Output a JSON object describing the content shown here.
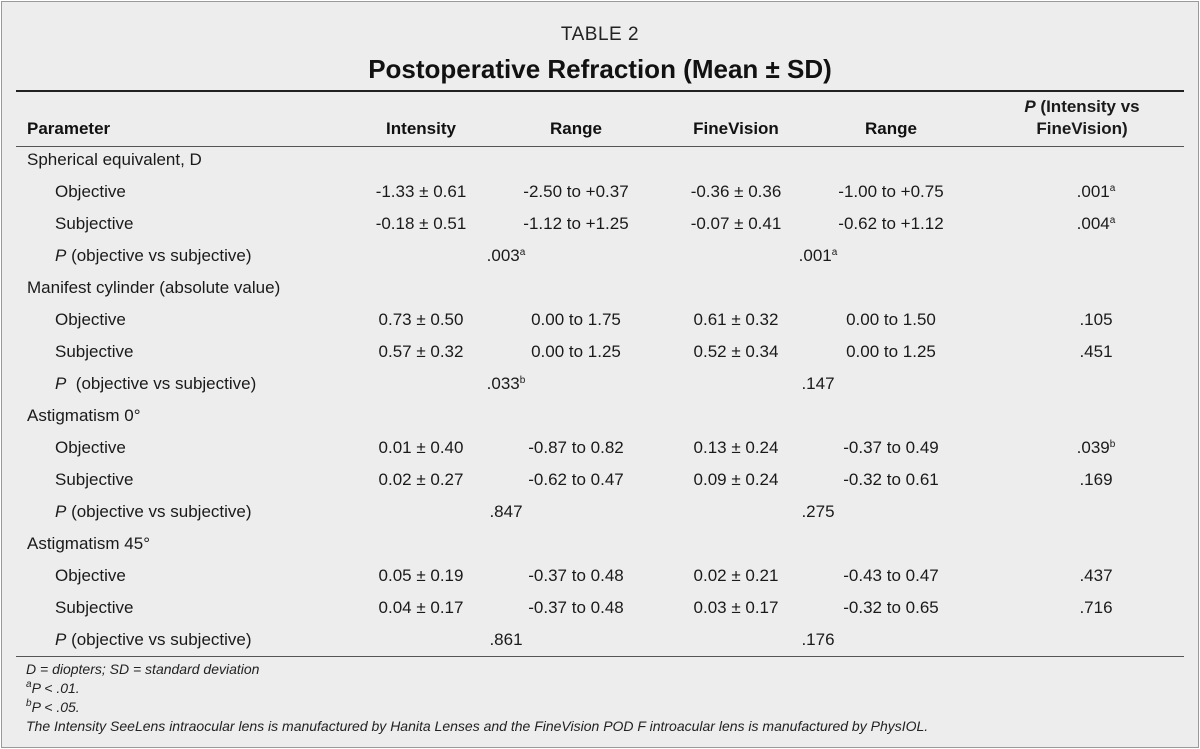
{
  "table": {
    "label": "TABLE 2",
    "title": "Postoperative Refraction (Mean ± SD)",
    "headers": {
      "parameter": "Parameter",
      "intensity": "Intensity",
      "range1": "Range",
      "finevision": "FineVision",
      "range2": "Range",
      "p_letter": "P",
      "p_line1": " (Intensity vs",
      "p_line2": "FineVision)"
    },
    "groups": [
      {
        "name": "Spherical equivalent, D",
        "objective": {
          "label": "Objective",
          "intensity": "-1.33 ± 0.61",
          "range1": "-2.50 to +0.37",
          "finevision": "-0.36 ± 0.36",
          "range2": "-1.00 to +0.75",
          "p": ".001",
          "p_sup": "a"
        },
        "subjective": {
          "label": "Subjective",
          "intensity": "-0.18 ± 0.51",
          "range1": "-1.12 to +1.25",
          "finevision": "-0.07 ± 0.41",
          "range2": "-0.62 to +1.12",
          "p": ".004",
          "p_sup": "a"
        },
        "pcompare": {
          "p_letter": "P",
          "label": " (objective vs subjective)",
          "intensity": ".003",
          "intensity_sup": "a",
          "finevision": ".001",
          "finevision_sup": "a"
        }
      },
      {
        "name": "Manifest cylinder (absolute value)",
        "objective": {
          "label": "Objective",
          "intensity": "0.73 ± 0.50",
          "range1": "0.00 to 1.75",
          "finevision": "0.61 ± 0.32",
          "range2": "0.00 to 1.50",
          "p": ".105",
          "p_sup": ""
        },
        "subjective": {
          "label": "Subjective",
          "intensity": "0.57 ± 0.32",
          "range1": "0.00 to 1.25",
          "finevision": "0.52 ± 0.34",
          "range2": "0.00 to 1.25",
          "p": ".451",
          "p_sup": ""
        },
        "pcompare": {
          "p_letter": "P",
          "label": "  (objective vs subjective)",
          "intensity": ".033",
          "intensity_sup": "b",
          "finevision": ".147",
          "finevision_sup": ""
        }
      },
      {
        "name": "Astigmatism 0°",
        "objective": {
          "label": "Objective",
          "intensity": "0.01 ± 0.40",
          "range1": "-0.87 to 0.82",
          "finevision": "0.13 ± 0.24",
          "range2": "-0.37 to 0.49",
          "p": ".039",
          "p_sup": "b"
        },
        "subjective": {
          "label": "Subjective",
          "intensity": "0.02 ± 0.27",
          "range1": "-0.62 to 0.47",
          "finevision": "0.09 ± 0.24",
          "range2": "-0.32 to 0.61",
          "p": ".169",
          "p_sup": ""
        },
        "pcompare": {
          "p_letter": "P",
          "label": " (objective vs subjective)",
          "intensity": ".847",
          "intensity_sup": "",
          "finevision": ".275",
          "finevision_sup": ""
        }
      },
      {
        "name": "Astigmatism 45°",
        "objective": {
          "label": "Objective",
          "intensity": "0.05 ± 0.19",
          "range1": "-0.37 to 0.48",
          "finevision": "0.02 ± 0.21",
          "range2": "-0.43 to 0.47",
          "p": ".437",
          "p_sup": ""
        },
        "subjective": {
          "label": "Subjective",
          "intensity": "0.04 ± 0.17",
          "range1": "-0.37 to 0.48",
          "finevision": "0.03 ± 0.17",
          "range2": "-0.32 to 0.65",
          "p": ".716",
          "p_sup": ""
        },
        "pcompare": {
          "p_letter": "P",
          "label": " (objective vs subjective)",
          "intensity": ".861",
          "intensity_sup": "",
          "finevision": ".176",
          "finevision_sup": ""
        }
      }
    ],
    "footnotes": {
      "abbrev": "D = diopters; SD = standard deviation",
      "a_mark": "a",
      "a_text": "P < .01.",
      "b_mark": "b",
      "b_text": "P < .05.",
      "lens": "The Intensity SeeLens intraocular lens is manufactured by Hanita Lenses and the FineVision POD F introacular lens is manufactured by PhysIOL."
    }
  }
}
